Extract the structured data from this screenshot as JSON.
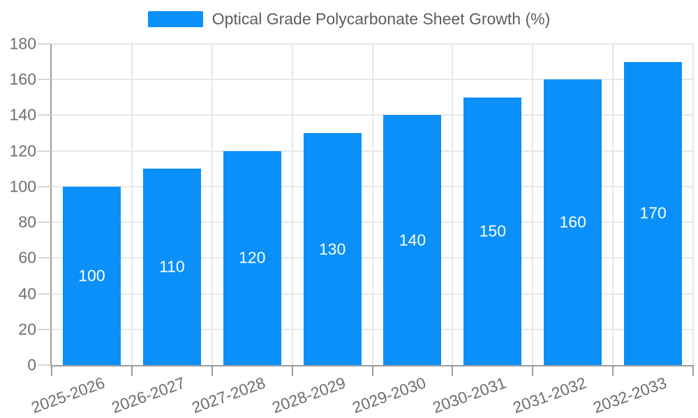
{
  "legend": {
    "label": "Optical Grade Polycarbonate Sheet Growth (%)"
  },
  "chart_data": {
    "type": "bar",
    "title": "",
    "xlabel": "",
    "ylabel": "",
    "categories": [
      "2025-2026",
      "2026-2027",
      "2027-2028",
      "2028-2029",
      "2029-2030",
      "2030-2031",
      "2031-2032",
      "2032-2033"
    ],
    "series": [
      {
        "name": "Optical Grade Polycarbonate Sheet Growth (%)",
        "values": [
          100,
          110,
          120,
          130,
          140,
          150,
          160,
          170
        ]
      }
    ],
    "ylim": [
      0,
      180
    ],
    "ytick_step": 20,
    "yticks": [
      0,
      20,
      40,
      60,
      80,
      100,
      120,
      140,
      160,
      180
    ],
    "grid": true,
    "legend_position": "top",
    "x_label_rotation_deg": -20,
    "data_labels": true
  },
  "colors": {
    "bar": "#0a90f8",
    "grid_line": "#e7e7e7",
    "axis_line": "#9c9c9c",
    "axis_text": "#6e6e6e",
    "legend_text": "#5d5d5d",
    "data_label": "#ffffff",
    "background": "#ffffff"
  }
}
